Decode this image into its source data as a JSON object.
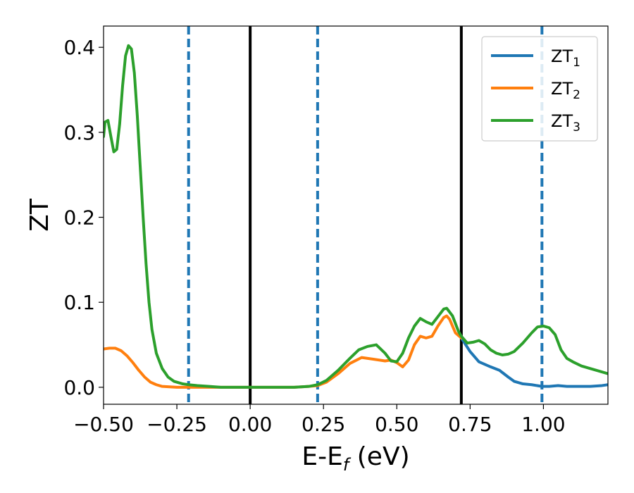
{
  "chart_data": {
    "type": "line",
    "xlabel": "E-E",
    "xlabel_sub": "f",
    "xlabel_unit": " (eV)",
    "ylabel": "ZT",
    "xlim": [
      -0.5,
      1.22
    ],
    "ylim": [
      -0.02,
      0.425
    ],
    "x_ticks": [
      -0.5,
      -0.25,
      0.0,
      0.25,
      0.5,
      0.75,
      1.0
    ],
    "x_tick_labels": [
      "−0.50",
      "−0.25",
      "0.00",
      "0.25",
      "0.50",
      "0.75",
      "1.00"
    ],
    "y_ticks": [
      0.0,
      0.1,
      0.2,
      0.3,
      0.4
    ],
    "y_tick_labels": [
      "0.0",
      "0.1",
      "0.2",
      "0.3",
      "0.4"
    ],
    "grid": false,
    "legend_position": "top-right",
    "vlines_solid": [
      0.0,
      0.72
    ],
    "vlines_dashed": [
      -0.21,
      0.23,
      0.995
    ],
    "vline_solid_color": "#000000",
    "vline_dashed_color": "#1f77b4",
    "series": [
      {
        "name": "ZT",
        "sub": "1",
        "color": "#1f77b4",
        "points": [
          [
            0.72,
            0.058
          ],
          [
            0.75,
            0.042
          ],
          [
            0.78,
            0.03
          ],
          [
            0.82,
            0.024
          ],
          [
            0.85,
            0.02
          ],
          [
            0.88,
            0.012
          ],
          [
            0.9,
            0.007
          ],
          [
            0.93,
            0.004
          ],
          [
            0.96,
            0.003
          ],
          [
            0.995,
            0.001
          ],
          [
            1.02,
            0.001
          ],
          [
            1.05,
            0.002
          ],
          [
            1.08,
            0.001
          ],
          [
            1.12,
            0.001
          ],
          [
            1.16,
            0.001
          ],
          [
            1.2,
            0.002
          ],
          [
            1.22,
            0.003
          ]
        ]
      },
      {
        "name": "ZT",
        "sub": "2",
        "color": "#ff7f0e",
        "points": [
          [
            -0.5,
            0.045
          ],
          [
            -0.48,
            0.046
          ],
          [
            -0.46,
            0.046
          ],
          [
            -0.44,
            0.043
          ],
          [
            -0.42,
            0.037
          ],
          [
            -0.4,
            0.029
          ],
          [
            -0.38,
            0.02
          ],
          [
            -0.36,
            0.012
          ],
          [
            -0.34,
            0.006
          ],
          [
            -0.32,
            0.003
          ],
          [
            -0.3,
            0.001
          ],
          [
            -0.25,
            0.0
          ],
          [
            -0.2,
            0.0
          ],
          [
            0.0,
            0.0
          ],
          [
            0.15,
            0.0
          ],
          [
            0.2,
            0.001
          ],
          [
            0.23,
            0.002
          ],
          [
            0.26,
            0.006
          ],
          [
            0.3,
            0.016
          ],
          [
            0.34,
            0.028
          ],
          [
            0.38,
            0.035
          ],
          [
            0.42,
            0.033
          ],
          [
            0.46,
            0.031
          ],
          [
            0.48,
            0.032
          ],
          [
            0.5,
            0.029
          ],
          [
            0.52,
            0.024
          ],
          [
            0.54,
            0.032
          ],
          [
            0.56,
            0.05
          ],
          [
            0.58,
            0.06
          ],
          [
            0.6,
            0.058
          ],
          [
            0.62,
            0.06
          ],
          [
            0.64,
            0.072
          ],
          [
            0.66,
            0.082
          ],
          [
            0.67,
            0.084
          ],
          [
            0.68,
            0.08
          ],
          [
            0.7,
            0.064
          ],
          [
            0.72,
            0.058
          ]
        ]
      },
      {
        "name": "ZT",
        "sub": "3",
        "color": "#2ca02c",
        "points": [
          [
            -0.5,
            0.295
          ],
          [
            -0.495,
            0.312
          ],
          [
            -0.485,
            0.314
          ],
          [
            -0.475,
            0.295
          ],
          [
            -0.465,
            0.277
          ],
          [
            -0.455,
            0.28
          ],
          [
            -0.445,
            0.31
          ],
          [
            -0.435,
            0.355
          ],
          [
            -0.425,
            0.39
          ],
          [
            -0.415,
            0.402
          ],
          [
            -0.405,
            0.398
          ],
          [
            -0.395,
            0.37
          ],
          [
            -0.385,
            0.32
          ],
          [
            -0.375,
            0.26
          ],
          [
            -0.365,
            0.2
          ],
          [
            -0.355,
            0.145
          ],
          [
            -0.345,
            0.1
          ],
          [
            -0.335,
            0.068
          ],
          [
            -0.32,
            0.04
          ],
          [
            -0.3,
            0.022
          ],
          [
            -0.28,
            0.012
          ],
          [
            -0.26,
            0.007
          ],
          [
            -0.23,
            0.004
          ],
          [
            -0.21,
            0.003
          ],
          [
            -0.18,
            0.002
          ],
          [
            -0.14,
            0.001
          ],
          [
            -0.1,
            0.0
          ],
          [
            0.0,
            0.0
          ],
          [
            0.15,
            0.0
          ],
          [
            0.2,
            0.001
          ],
          [
            0.23,
            0.003
          ],
          [
            0.26,
            0.008
          ],
          [
            0.3,
            0.02
          ],
          [
            0.34,
            0.034
          ],
          [
            0.37,
            0.044
          ],
          [
            0.4,
            0.048
          ],
          [
            0.43,
            0.05
          ],
          [
            0.46,
            0.04
          ],
          [
            0.48,
            0.031
          ],
          [
            0.5,
            0.03
          ],
          [
            0.52,
            0.04
          ],
          [
            0.54,
            0.058
          ],
          [
            0.56,
            0.072
          ],
          [
            0.58,
            0.081
          ],
          [
            0.6,
            0.077
          ],
          [
            0.62,
            0.074
          ],
          [
            0.64,
            0.083
          ],
          [
            0.66,
            0.092
          ],
          [
            0.67,
            0.093
          ],
          [
            0.69,
            0.084
          ],
          [
            0.71,
            0.066
          ],
          [
            0.72,
            0.06
          ],
          [
            0.74,
            0.052
          ],
          [
            0.76,
            0.053
          ],
          [
            0.78,
            0.055
          ],
          [
            0.8,
            0.051
          ],
          [
            0.82,
            0.044
          ],
          [
            0.84,
            0.04
          ],
          [
            0.86,
            0.038
          ],
          [
            0.88,
            0.039
          ],
          [
            0.9,
            0.042
          ],
          [
            0.93,
            0.052
          ],
          [
            0.96,
            0.064
          ],
          [
            0.98,
            0.071
          ],
          [
            1.0,
            0.072
          ],
          [
            1.02,
            0.07
          ],
          [
            1.04,
            0.062
          ],
          [
            1.06,
            0.044
          ],
          [
            1.08,
            0.034
          ],
          [
            1.1,
            0.03
          ],
          [
            1.13,
            0.025
          ],
          [
            1.16,
            0.022
          ],
          [
            1.19,
            0.019
          ],
          [
            1.22,
            0.016
          ]
        ]
      }
    ]
  }
}
